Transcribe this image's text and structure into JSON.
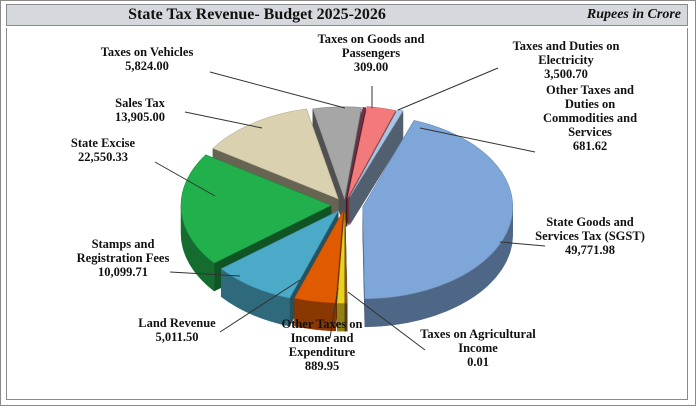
{
  "chart_data": {
    "type": "pie",
    "title": "State Tax Revenue- Budget 2025-2026",
    "units": "Rupees in Crore",
    "slices": [
      {
        "name": "State Goods and Services Tax (SGST)",
        "label_lines": [
          "State Goods and",
          "Services Tax (SGST)"
        ],
        "value_text": "49,771.98",
        "value": 49771.98,
        "color": "#7ea6d8"
      },
      {
        "name": "Taxes on Agricultural Income",
        "label_lines": [
          "Taxes on Agricultural",
          "Income"
        ],
        "value_text": "0.01",
        "value": 0.01,
        "color": "#8b5a2b"
      },
      {
        "name": "Other Taxes on Income and Expenditure",
        "label_lines": [
          "Other Taxes on",
          "Income and",
          "Expenditure"
        ],
        "value_text": "889.95",
        "value": 889.95,
        "color": "#e8d21e"
      },
      {
        "name": "Land Revenue",
        "label_lines": [
          "Land Revenue"
        ],
        "value_text": "5,011.50",
        "value": 5011.5,
        "color": "#e05a00"
      },
      {
        "name": "Stamps and Registration Fees",
        "label_lines": [
          "Stamps and",
          "Registration Fees"
        ],
        "value_text": "10,099.71",
        "value": 10099.71,
        "color": "#4aaac8"
      },
      {
        "name": "State Excise",
        "label_lines": [
          "State Excise"
        ],
        "value_text": "22,550.33",
        "value": 22550.33,
        "color": "#21b04c"
      },
      {
        "name": "Sales Tax",
        "label_lines": [
          "Sales Tax"
        ],
        "value_text": "13,905.00",
        "value": 13905.0,
        "color": "#d9d1b0"
      },
      {
        "name": "Taxes on Vehicles",
        "label_lines": [
          "Taxes on Vehicles"
        ],
        "value_text": "5,824.00",
        "value": 5824.0,
        "color": "#a6a6a6"
      },
      {
        "name": "Taxes on Goods and Passengers",
        "label_lines": [
          "Taxes on Goods and",
          "Passengers"
        ],
        "value_text": "309.00",
        "value": 309.0,
        "color": "#7b2f4a"
      },
      {
        "name": "Taxes and Duties on Electricity",
        "label_lines": [
          "Taxes and Duties on",
          "Electricity"
        ],
        "value_text": "3,500.70",
        "value": 3500.7,
        "color": "#f27a7a"
      },
      {
        "name": "Other Taxes and Duties on Commodities and Services",
        "label_lines": [
          "Other Taxes and",
          "Duties on",
          "Commodities and",
          "Services"
        ],
        "value_text": "681.62",
        "value": 681.62,
        "color": "#a8c6e6"
      }
    ]
  }
}
